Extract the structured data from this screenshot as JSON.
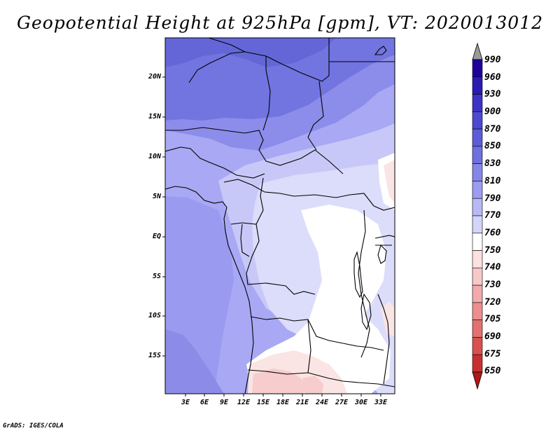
{
  "title": "Geopotential Height at 925hPa [gpm], VT: 2020013012",
  "credit": "GrADS: IGES/COLA",
  "axes": {
    "lat_labels": [
      "20N",
      "15N",
      "10N",
      "5N",
      "EQ",
      "5S",
      "10S",
      "15S"
    ],
    "lon_labels": [
      "3E",
      "6E",
      "9E",
      "12E",
      "15E",
      "18E",
      "21E",
      "24E",
      "27E",
      "30E",
      "33E"
    ]
  },
  "colorbar": {
    "levels": [
      "990",
      "960",
      "930",
      "900",
      "870",
      "850",
      "830",
      "810",
      "790",
      "770",
      "760",
      "750",
      "740",
      "730",
      "720",
      "705",
      "690",
      "675",
      "650"
    ],
    "colors": [
      "#20009c",
      "#2c1ab4",
      "#3c32c4",
      "#4c48d0",
      "#5c5cd8",
      "#6e70e0",
      "#8486e8",
      "#9c9cf0",
      "#b8b8f6",
      "#d4d4fa",
      "#ffffff",
      "#fde0e0",
      "#f8c8c8",
      "#f2aaaa",
      "#ec8e8e",
      "#e47070",
      "#d85050",
      "#c83030",
      "#b01818"
    ],
    "top_arrow_color": "#9a9a9a",
    "bottom_arrow_color": "#b01818"
  }
}
